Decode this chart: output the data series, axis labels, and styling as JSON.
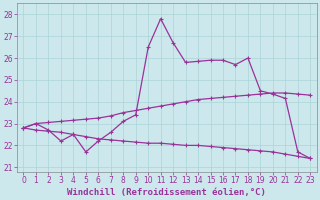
{
  "xlabel": "Windchill (Refroidissement éolien,°C)",
  "background_color": "#cce8ec",
  "line_color": "#993399",
  "xlim": [
    -0.5,
    23.5
  ],
  "ylim": [
    20.8,
    28.5
  ],
  "yticks": [
    21,
    22,
    23,
    24,
    25,
    26,
    27,
    28
  ],
  "xticks": [
    0,
    1,
    2,
    3,
    4,
    5,
    6,
    7,
    8,
    9,
    10,
    11,
    12,
    13,
    14,
    15,
    16,
    17,
    18,
    19,
    20,
    21,
    22,
    23
  ],
  "series1": [
    22.8,
    23.0,
    22.7,
    22.2,
    22.5,
    21.7,
    22.2,
    22.6,
    23.1,
    23.4,
    26.5,
    27.8,
    26.7,
    25.8,
    25.85,
    25.9,
    25.9,
    25.7,
    26.0,
    24.5,
    24.35,
    24.15,
    21.7,
    21.4
  ],
  "series2": [
    22.8,
    23.0,
    23.05,
    23.1,
    23.15,
    23.2,
    23.25,
    23.35,
    23.5,
    23.6,
    23.7,
    23.8,
    23.9,
    24.0,
    24.1,
    24.15,
    24.2,
    24.25,
    24.3,
    24.35,
    24.4,
    24.4,
    24.35,
    24.3
  ],
  "series3": [
    22.8,
    22.7,
    22.65,
    22.6,
    22.5,
    22.4,
    22.3,
    22.25,
    22.2,
    22.15,
    22.1,
    22.1,
    22.05,
    22.0,
    22.0,
    21.95,
    21.9,
    21.85,
    21.8,
    21.75,
    21.7,
    21.6,
    21.5,
    21.4
  ],
  "grid_color": "#aad4d8",
  "tick_fontsize": 5.5,
  "xlabel_fontsize": 6.5
}
